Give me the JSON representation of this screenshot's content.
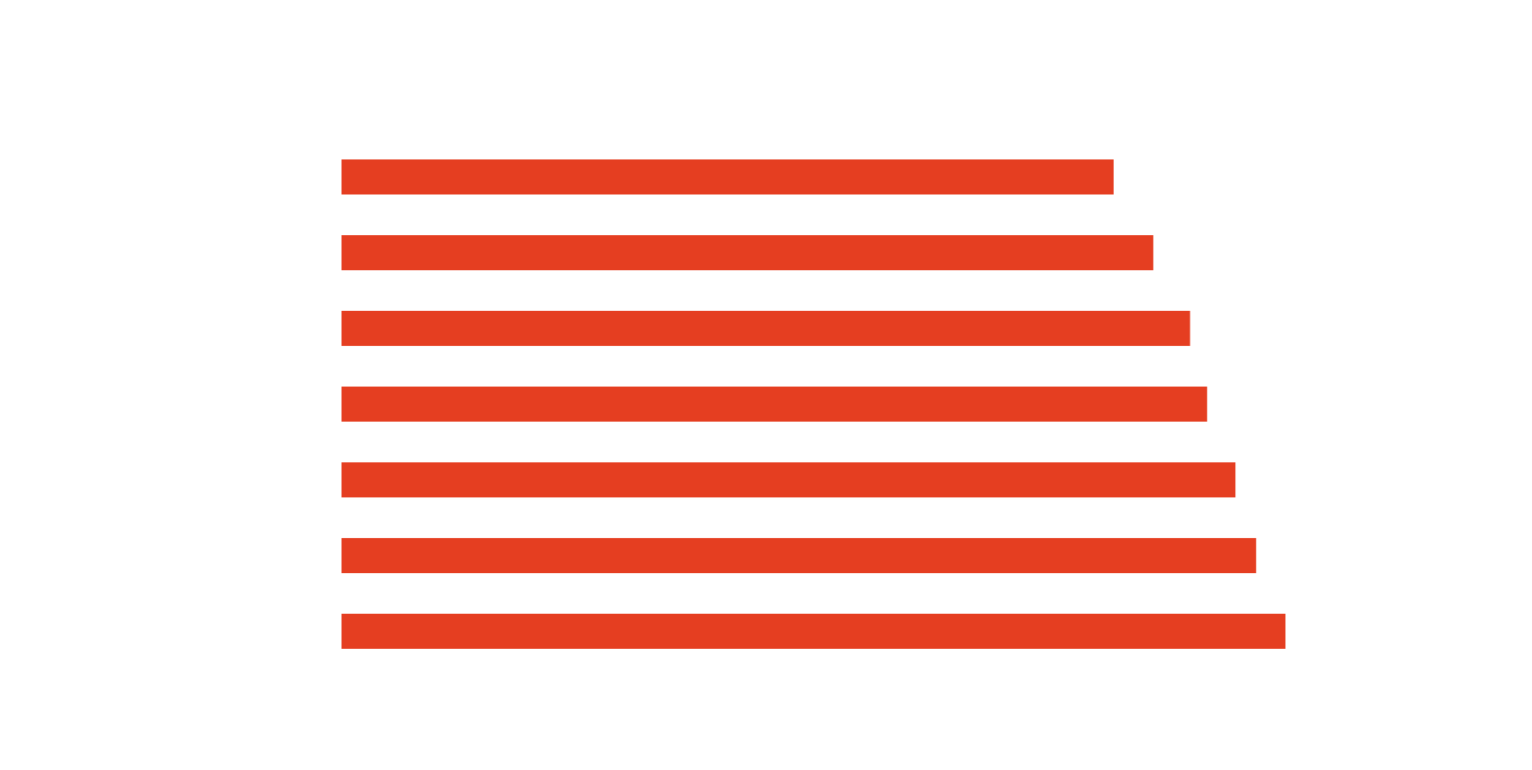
{
  "theme": {
    "background": "#ffffff",
    "bar_color": "#e53e21"
  },
  "chart_data": {
    "type": "bar",
    "orientation": "horizontal",
    "title": "",
    "xlabel": "",
    "ylabel": "",
    "grid": false,
    "legend": "none",
    "xlim": [
      0,
      100
    ],
    "series": [
      {
        "values": [
          81.8,
          86.0,
          89.9,
          91.7,
          94.7,
          96.9,
          100.0
        ]
      }
    ]
  }
}
